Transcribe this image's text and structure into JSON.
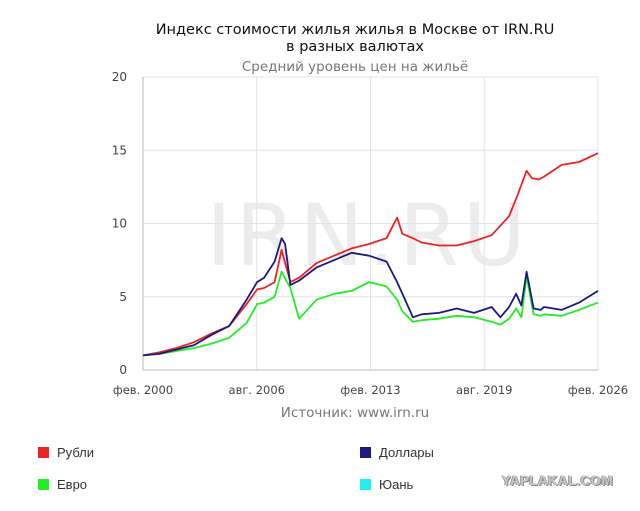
{
  "chart_data": {
    "type": "line",
    "title": "Индекс стоимости жилья жилья в Москве от IRN.RU\nв разных валютах",
    "subtitle": "Средний уровень цен на жильё",
    "source": "Источник: www.irn.ru",
    "watermark": "IRN.RU",
    "ylim": [
      0,
      20
    ],
    "yticks": [
      "0",
      "5",
      "10",
      "15",
      "20"
    ],
    "xlim": [
      2000.08,
      2026.08
    ],
    "xticks": [
      {
        "value": 2000.08,
        "label": "фев. 2000"
      },
      {
        "value": 2006.58,
        "label": "авг. 2006"
      },
      {
        "value": 2013.08,
        "label": "фев. 2013"
      },
      {
        "value": 2019.58,
        "label": "авг. 2019"
      },
      {
        "value": 2026.08,
        "label": "фев. 2026"
      }
    ],
    "grid": true,
    "legend_position": "bottom",
    "series": [
      {
        "name": "Рубли",
        "color": "#ee2222",
        "x": [
          2000.08,
          2001,
          2002,
          2003,
          2004,
          2005,
          2006,
          2006.6,
          2007,
          2007.6,
          2008,
          2008.5,
          2009,
          2010,
          2011,
          2012,
          2013,
          2014,
          2014.6,
          2014.9,
          2015.5,
          2016,
          2017,
          2018,
          2019,
          2020,
          2021,
          2021.5,
          2022,
          2022.3,
          2022.7,
          2023,
          2024,
          2025,
          2026.08
        ],
        "values": [
          1.0,
          1.2,
          1.5,
          1.9,
          2.5,
          3.0,
          4.5,
          5.5,
          5.6,
          6.0,
          8.2,
          6.0,
          6.3,
          7.3,
          7.8,
          8.3,
          8.6,
          9.0,
          10.4,
          9.3,
          9.0,
          8.7,
          8.5,
          8.5,
          8.8,
          9.2,
          10.5,
          12.0,
          13.6,
          13.1,
          13.0,
          13.2,
          14.0,
          14.2,
          14.8
        ]
      },
      {
        "name": "Доллары",
        "color": "#1a1a80",
        "x": [
          2000.08,
          2001,
          2002,
          2003,
          2004,
          2005,
          2006,
          2006.6,
          2007,
          2007.6,
          2008,
          2008.2,
          2008.5,
          2009,
          2010,
          2011,
          2012,
          2013,
          2014,
          2014.6,
          2014.9,
          2015.5,
          2016,
          2017,
          2018,
          2019,
          2020,
          2020.5,
          2021,
          2021.4,
          2021.7,
          2022,
          2022.4,
          2022.8,
          2023,
          2024,
          2025,
          2026.08
        ],
        "values": [
          1.0,
          1.1,
          1.4,
          1.7,
          2.4,
          3.0,
          4.8,
          6.0,
          6.3,
          7.4,
          9.0,
          8.6,
          5.8,
          6.1,
          7.0,
          7.5,
          8.0,
          7.8,
          7.4,
          6.0,
          5.2,
          3.6,
          3.8,
          3.9,
          4.2,
          3.9,
          4.3,
          3.6,
          4.3,
          5.2,
          4.4,
          6.7,
          4.2,
          4.1,
          4.3,
          4.1,
          4.6,
          5.4
        ]
      },
      {
        "name": "Евро",
        "color": "#22ee22",
        "x": [
          2000.08,
          2001,
          2002,
          2003,
          2004,
          2005,
          2006,
          2006.6,
          2007,
          2007.6,
          2008,
          2008.5,
          2009,
          2010,
          2011,
          2012,
          2013,
          2014,
          2014.6,
          2014.9,
          2015.5,
          2016,
          2017,
          2018,
          2019,
          2020,
          2020.5,
          2021,
          2021.4,
          2021.7,
          2022,
          2022.4,
          2022.8,
          2023,
          2024,
          2025,
          2026.08
        ],
        "values": [
          1.0,
          1.1,
          1.3,
          1.5,
          1.8,
          2.2,
          3.2,
          4.5,
          4.6,
          5.0,
          6.7,
          5.6,
          3.5,
          4.8,
          5.2,
          5.4,
          6.0,
          5.7,
          4.8,
          4.0,
          3.3,
          3.4,
          3.5,
          3.7,
          3.6,
          3.3,
          3.1,
          3.5,
          4.2,
          3.6,
          6.4,
          3.8,
          3.7,
          3.8,
          3.7,
          4.1,
          4.6
        ]
      },
      {
        "name": "Юань",
        "color": "#22eeee",
        "x": [],
        "values": []
      }
    ]
  }
}
